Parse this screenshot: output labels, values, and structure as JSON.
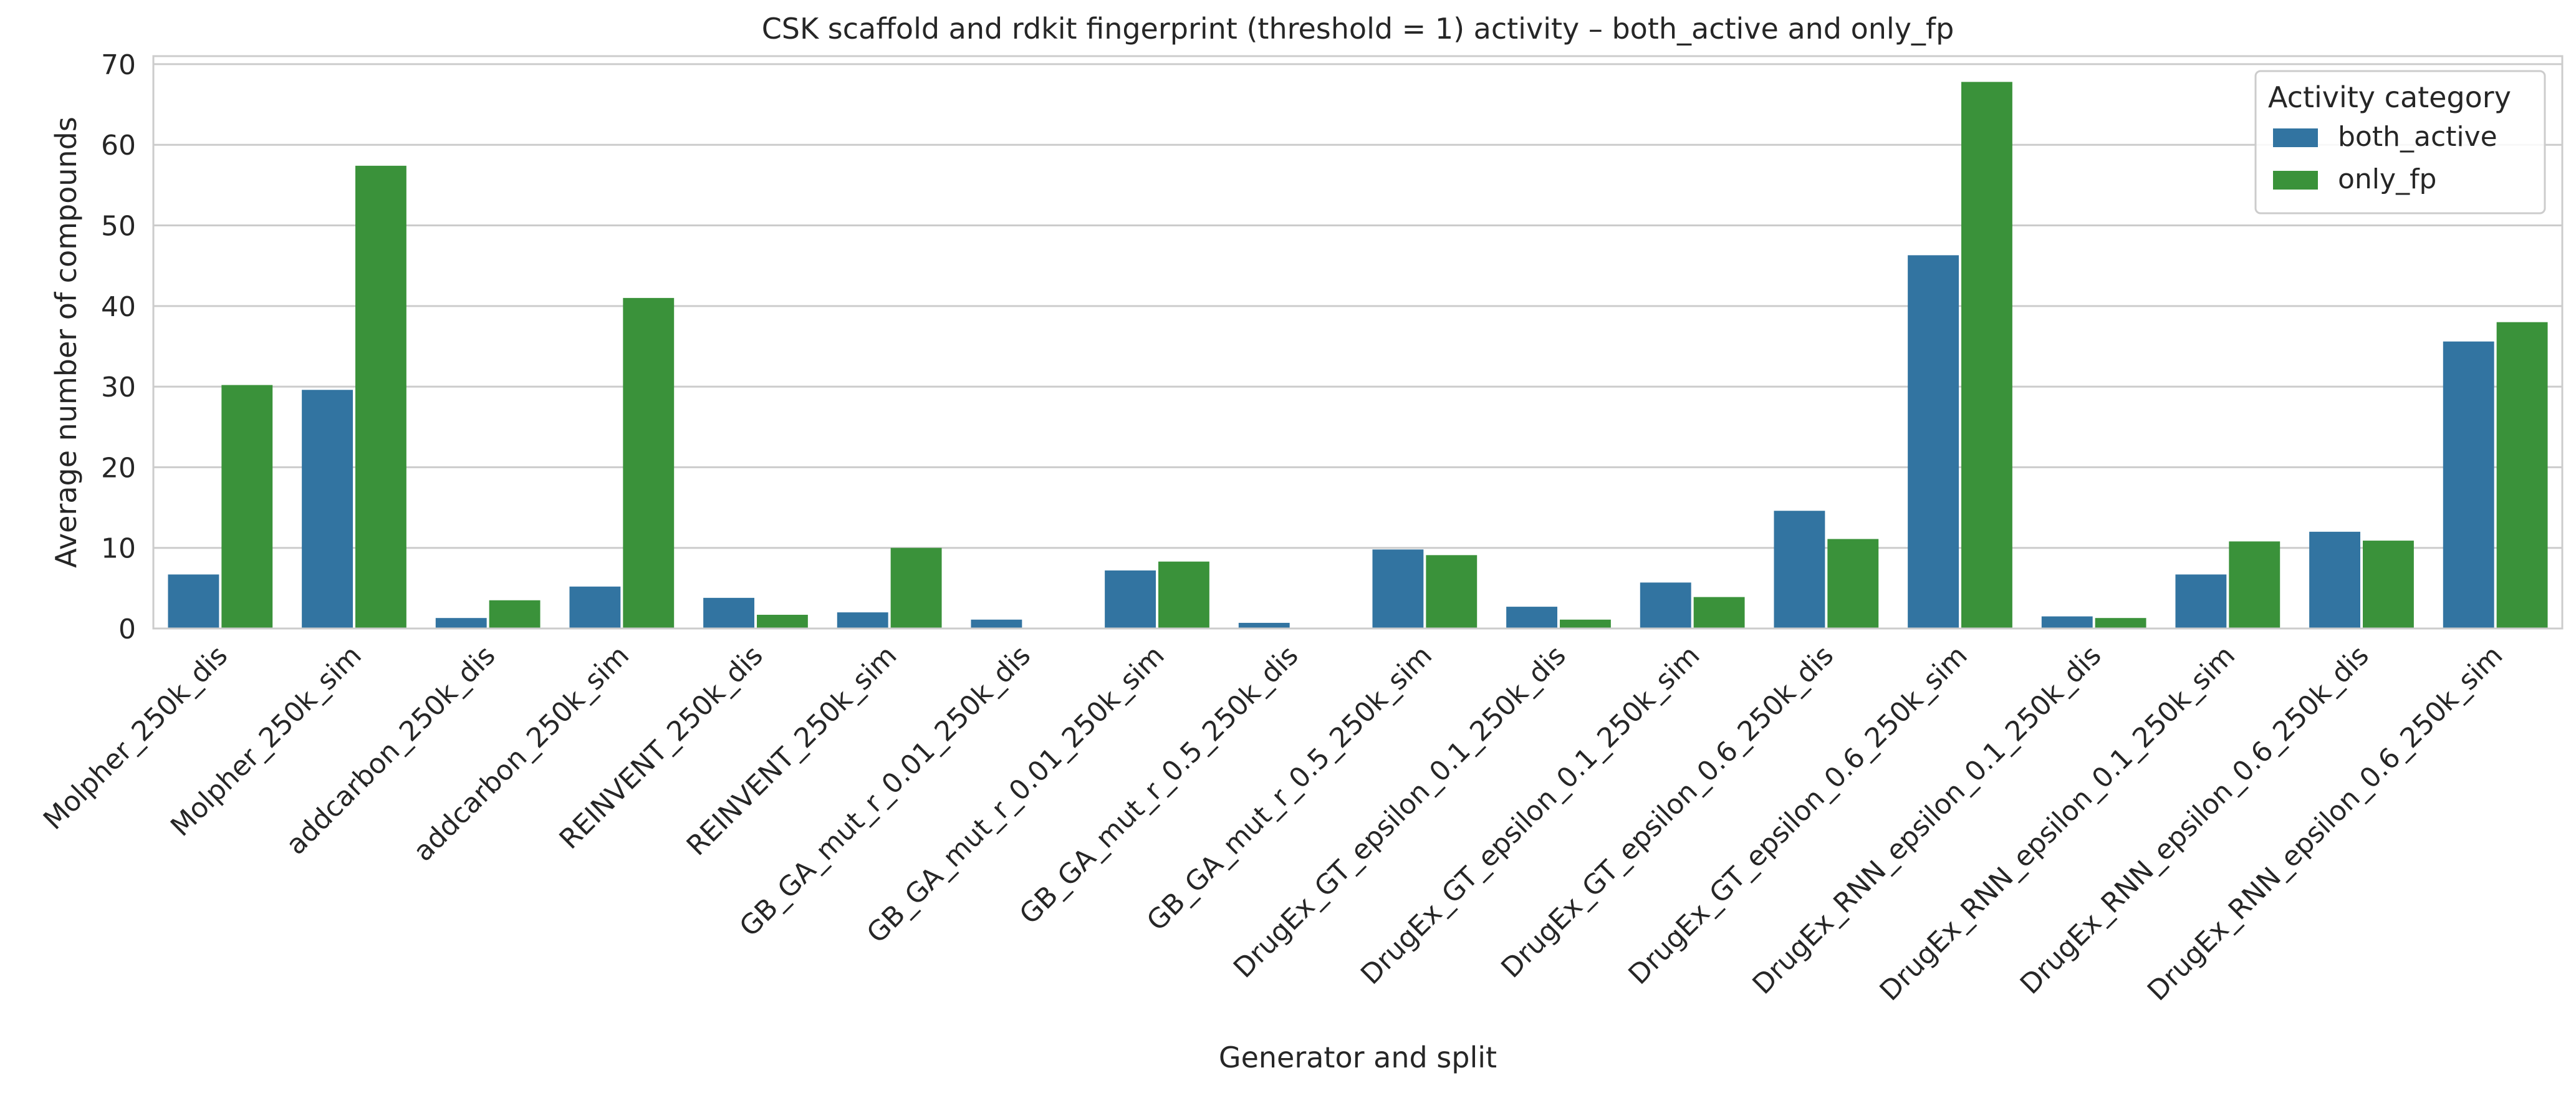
{
  "chart_data": {
    "type": "bar",
    "title": "CSK scaffold and rdkit fingerprint (threshold = 1) activity – both_active and only_fp",
    "xlabel": "Generator and split",
    "ylabel": "Average number of compounds",
    "ylim": [
      0,
      71
    ],
    "yticks": [
      "0",
      "10",
      "20",
      "30",
      "40",
      "50",
      "60",
      "70"
    ],
    "grid": true,
    "legend": {
      "title": "Activity category",
      "placement": "top-right"
    },
    "categories": [
      "Molpher_250k_dis",
      "Molpher_250k_sim",
      "addcarbon_250k_dis",
      "addcarbon_250k_sim",
      "REINVENT_250k_dis",
      "REINVENT_250k_sim",
      "GB_GA_mut_r_0.01_250k_dis",
      "GB_GA_mut_r_0.01_250k_sim",
      "GB_GA_mut_r_0.5_250k_dis",
      "GB_GA_mut_r_0.5_250k_sim",
      "DrugEx_GT_epsilon_0.1_250k_dis",
      "DrugEx_GT_epsilon_0.1_250k_sim",
      "DrugEx_GT_epsilon_0.6_250k_dis",
      "DrugEx_GT_epsilon_0.6_250k_sim",
      "DrugEx_RNN_epsilon_0.1_250k_dis",
      "DrugEx_RNN_epsilon_0.1_250k_sim",
      "DrugEx_RNN_epsilon_0.6_250k_dis",
      "DrugEx_RNN_epsilon_0.6_250k_sim"
    ],
    "series": [
      {
        "name": "both_active",
        "color": "#3274a1",
        "values": [
          6.7,
          29.6,
          1.3,
          5.2,
          3.8,
          2.0,
          1.1,
          7.2,
          0.7,
          9.8,
          2.7,
          5.7,
          14.6,
          46.3,
          1.5,
          6.7,
          12.0,
          35.6
        ]
      },
      {
        "name": "only_fp",
        "color": "#3a923a",
        "values": [
          30.2,
          57.4,
          3.5,
          41.0,
          1.7,
          10.0,
          0.0,
          8.3,
          0.0,
          9.1,
          1.1,
          3.9,
          11.1,
          67.8,
          1.3,
          10.8,
          10.9,
          38.0
        ]
      }
    ]
  }
}
